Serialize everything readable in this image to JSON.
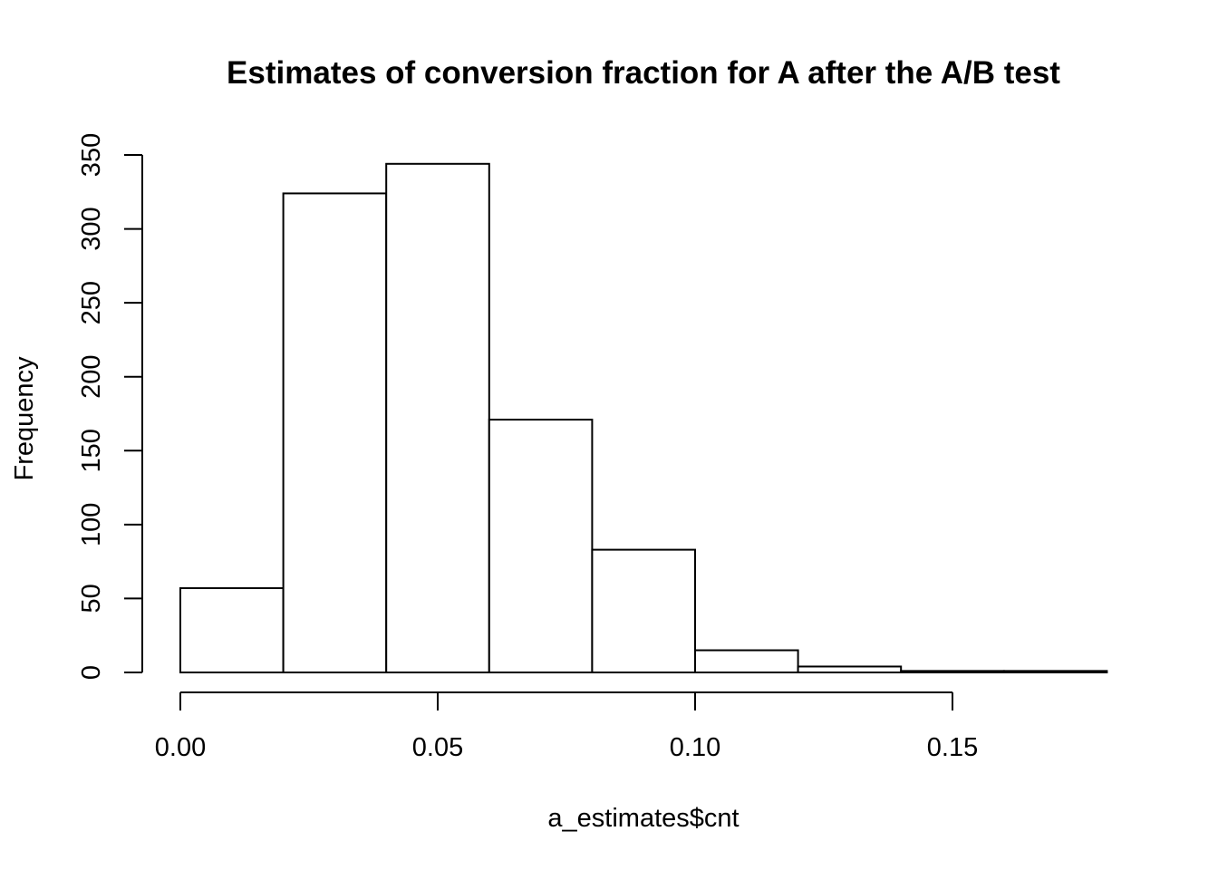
{
  "chart_data": {
    "type": "bar",
    "title": "Estimates of conversion fraction for A after the A/B test",
    "xlabel": "a_estimates$cnt",
    "ylabel": "Frequency",
    "bins": [
      {
        "x0": 0.0,
        "x1": 0.02,
        "count": 57
      },
      {
        "x0": 0.02,
        "x1": 0.04,
        "count": 324
      },
      {
        "x0": 0.04,
        "x1": 0.06,
        "count": 344
      },
      {
        "x0": 0.06,
        "x1": 0.08,
        "count": 171
      },
      {
        "x0": 0.08,
        "x1": 0.1,
        "count": 83
      },
      {
        "x0": 0.1,
        "x1": 0.12,
        "count": 15
      },
      {
        "x0": 0.12,
        "x1": 0.14,
        "count": 4
      },
      {
        "x0": 0.14,
        "x1": 0.16,
        "count": 1
      },
      {
        "x0": 0.16,
        "x1": 0.18,
        "count": 1
      }
    ],
    "xlim": [
      0.0,
      0.18
    ],
    "ylim": [
      0,
      350
    ],
    "x_ticks": [
      {
        "value": 0.0,
        "label": "0.00"
      },
      {
        "value": 0.05,
        "label": "0.05"
      },
      {
        "value": 0.1,
        "label": "0.10"
      },
      {
        "value": 0.15,
        "label": "0.15"
      }
    ],
    "y_ticks": [
      {
        "value": 0,
        "label": "0"
      },
      {
        "value": 50,
        "label": "50"
      },
      {
        "value": 100,
        "label": "100"
      },
      {
        "value": 150,
        "label": "150"
      },
      {
        "value": 200,
        "label": "200"
      },
      {
        "value": 250,
        "label": "250"
      },
      {
        "value": 300,
        "label": "300"
      },
      {
        "value": 350,
        "label": "350"
      }
    ],
    "grid": false,
    "legend": "none"
  }
}
